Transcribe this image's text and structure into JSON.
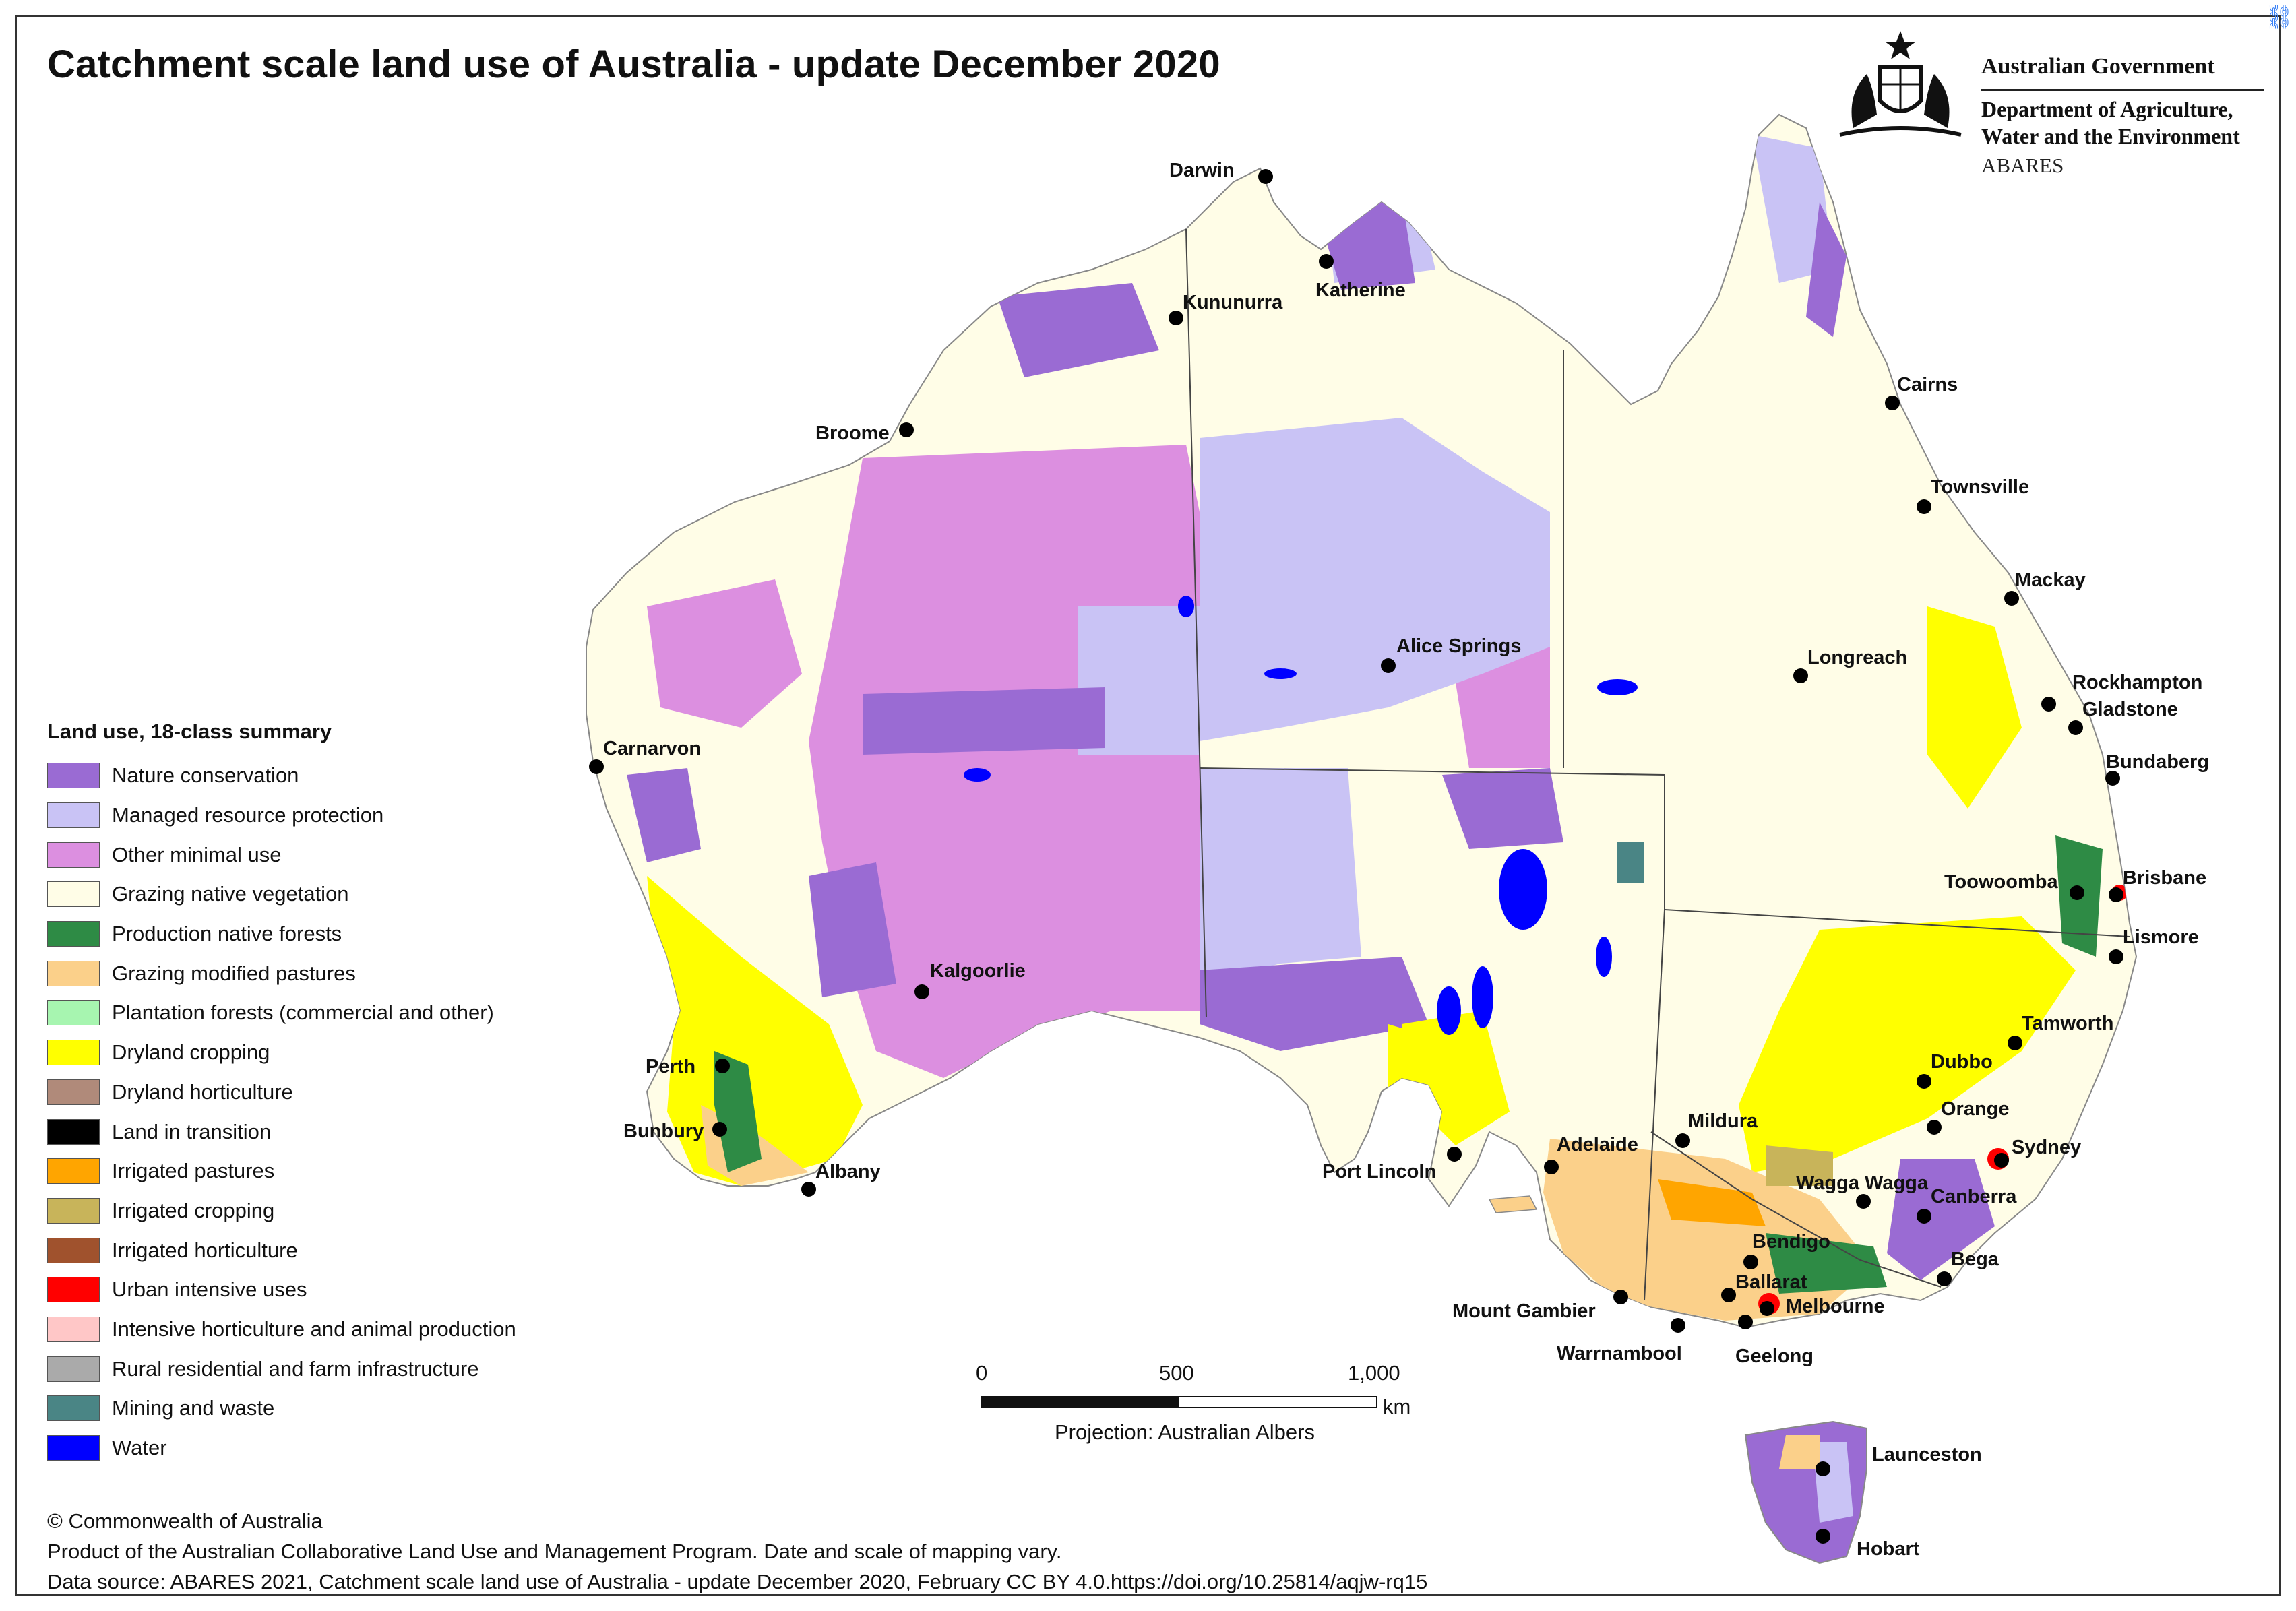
{
  "title": "Catchment scale land use of Australia - update December 2020",
  "government": {
    "name": "Australian Government",
    "department_line1": "Department of Agriculture,",
    "department_line2": "Water and the Environment",
    "agency": "ABARES",
    "emblem_icon": "coat-of-arms-icon"
  },
  "legend": {
    "title": "Land use, 18-class summary",
    "items": [
      {
        "label": "Nature conservation",
        "color": "#9A6BD3"
      },
      {
        "label": "Managed resource protection",
        "color": "#C9C3F5"
      },
      {
        "label": "Other minimal use",
        "color": "#DC8FE0"
      },
      {
        "label": "Grazing native vegetation",
        "color": "#FFFDE7"
      },
      {
        "label": "Production native forests",
        "color": "#2E8B45"
      },
      {
        "label": "Grazing modified pastures",
        "color": "#FBD08A"
      },
      {
        "label": "Plantation forests (commercial and other)",
        "color": "#A7F5B0"
      },
      {
        "label": "Dryland cropping",
        "color": "#FFFF00"
      },
      {
        "label": "Dryland horticulture",
        "color": "#B08A7A"
      },
      {
        "label": "Land in transition",
        "color": "#000000"
      },
      {
        "label": "Irrigated pastures",
        "color": "#FFA500"
      },
      {
        "label": "Irrigated cropping",
        "color": "#C8B45A"
      },
      {
        "label": "Irrigated horticulture",
        "color": "#A0522D"
      },
      {
        "label": "Urban intensive uses",
        "color": "#FF0000"
      },
      {
        "label": "Intensive horticulture and animal production",
        "color": "#FFC7C7"
      },
      {
        "label": "Rural residential and farm infrastructure",
        "color": "#AAAAAA"
      },
      {
        "label": "Mining and waste",
        "color": "#4A8585"
      },
      {
        "label": "Water",
        "color": "#0000FF"
      }
    ]
  },
  "cities": [
    {
      "name": "Darwin"
    },
    {
      "name": "Katherine"
    },
    {
      "name": "Kununurra"
    },
    {
      "name": "Broome"
    },
    {
      "name": "Cairns"
    },
    {
      "name": "Townsville"
    },
    {
      "name": "Mackay"
    },
    {
      "name": "Rockhampton"
    },
    {
      "name": "Gladstone"
    },
    {
      "name": "Bundaberg"
    },
    {
      "name": "Longreach"
    },
    {
      "name": "Alice Springs"
    },
    {
      "name": "Carnarvon"
    },
    {
      "name": "Toowoomba"
    },
    {
      "name": "Brisbane"
    },
    {
      "name": "Lismore"
    },
    {
      "name": "Kalgoorlie"
    },
    {
      "name": "Tamworth"
    },
    {
      "name": "Dubbo"
    },
    {
      "name": "Orange"
    },
    {
      "name": "Sydney"
    },
    {
      "name": "Perth"
    },
    {
      "name": "Bunbury"
    },
    {
      "name": "Albany"
    },
    {
      "name": "Mildura"
    },
    {
      "name": "Adelaide"
    },
    {
      "name": "Port Lincoln"
    },
    {
      "name": "Wagga Wagga"
    },
    {
      "name": "Canberra"
    },
    {
      "name": "Bendigo"
    },
    {
      "name": "Bega"
    },
    {
      "name": "Ballarat"
    },
    {
      "name": "Melbourne"
    },
    {
      "name": "Mount Gambier"
    },
    {
      "name": "Warrnambool"
    },
    {
      "name": "Geelong"
    },
    {
      "name": "Launceston"
    },
    {
      "name": "Hobart"
    }
  ],
  "scale": {
    "ticks": [
      "0",
      "500",
      "1,000"
    ],
    "unit": "km",
    "projection": "Projection: Australian Albers"
  },
  "footer": {
    "copyright": "© Commonwealth of Australia",
    "product": "Product of the Australian Collaborative Land Use and Management Program. Date and scale of mapping vary.",
    "source": "Data source: ABARES 2021, Catchment scale land use of Australia - update December 2020, February CC BY 4.0.https://doi.org/10.25814/aqjw-rq15"
  }
}
